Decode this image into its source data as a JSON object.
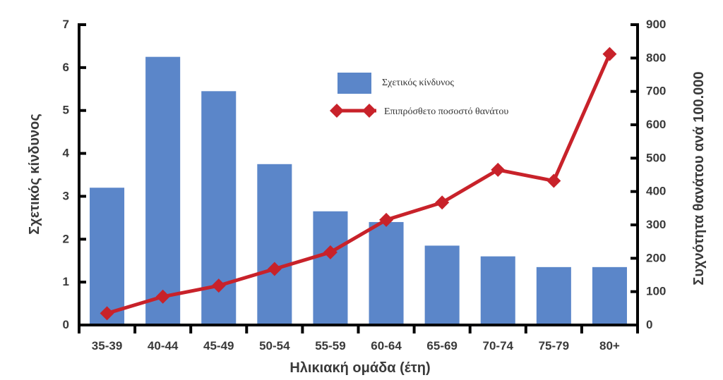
{
  "chart_data": {
    "type": "bar",
    "categories": [
      "35-39",
      "40-44",
      "45-49",
      "50-54",
      "55-59",
      "60-64",
      "65-69",
      "70-74",
      "75-79",
      "80+"
    ],
    "xlabel": "Ηλικιακή ομάδα (έτη)",
    "ylabel": "Σχετικός κίνδυνος",
    "y2label": "Συχνότητα θανάτου ανά 100.000",
    "ylim": [
      0,
      7
    ],
    "y2lim": [
      0,
      900
    ],
    "yticks": [
      "0",
      "1",
      "2",
      "3",
      "4",
      "5",
      "6",
      "7"
    ],
    "y2ticks": [
      "0",
      "100",
      "200",
      "300",
      "400",
      "500",
      "600",
      "700",
      "800",
      "900"
    ],
    "grid": false,
    "legend_position": "top-center",
    "series": [
      {
        "name": "Σχετικός κίνδυνος",
        "type": "bar",
        "axis": "left",
        "color": "#5b86c9",
        "values": [
          3.2,
          6.25,
          5.45,
          3.75,
          2.65,
          2.4,
          1.85,
          1.6,
          1.35,
          1.35
        ]
      },
      {
        "name": "Επιπρόσθετο ποσοστό θανάτου",
        "type": "line",
        "axis": "right",
        "color": "#c8222a",
        "marker": "diamond",
        "values": [
          35,
          85,
          118,
          168,
          218,
          315,
          367,
          465,
          432,
          812
        ]
      }
    ]
  }
}
